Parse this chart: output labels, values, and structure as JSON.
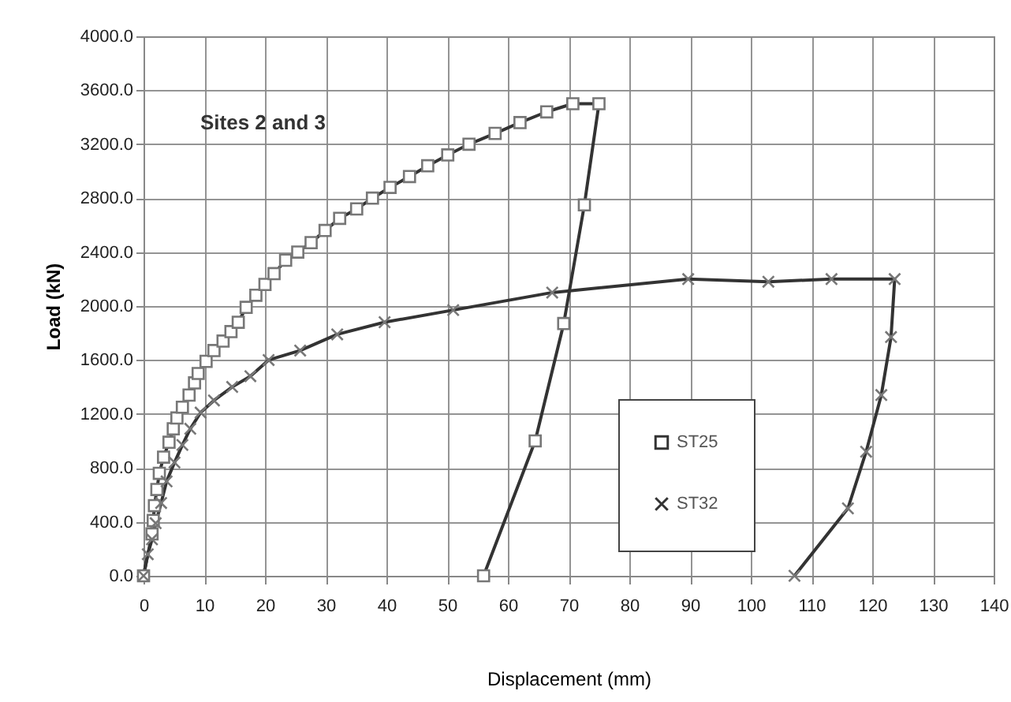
{
  "chart_data": {
    "type": "line",
    "xlabel": "Displacement (mm)",
    "ylabel": "Load (kN)",
    "annotations": [
      "Sites 2 and 3"
    ],
    "xlim": [
      0,
      140
    ],
    "xticks": [
      0,
      10,
      20,
      30,
      40,
      50,
      60,
      70,
      80,
      90,
      100,
      110,
      120,
      130,
      140
    ],
    "ylim": [
      0,
      4000
    ],
    "yticks": [
      {
        "value": 0,
        "label": "0.0"
      },
      {
        "value": 400,
        "label": "400.0"
      },
      {
        "value": 800,
        "label": "800.0"
      },
      {
        "value": 1200,
        "label": "1200.0"
      },
      {
        "value": 1600,
        "label": "1600.0"
      },
      {
        "value": 2000,
        "label": "2000.0"
      },
      {
        "value": 2400,
        "label": "2400.0"
      },
      {
        "value": 2800,
        "label": "2800.0"
      },
      {
        "value": 3200,
        "label": "3200.0"
      },
      {
        "value": 3600,
        "label": "3600.0"
      },
      {
        "value": 4000,
        "label": "4000.0"
      }
    ],
    "grid": true,
    "legend": "bottom right",
    "line_style": "solid",
    "series": [
      {
        "name": "ST25",
        "color": "#333333",
        "marker": "square",
        "x": [
          0,
          1.4,
          1.6,
          1.8,
          2.2,
          2.6,
          3.3,
          4.2,
          4.9,
          5.5,
          6.4,
          7.5,
          8.4,
          9.0,
          10.3,
          11.6,
          13.1,
          14.4,
          15.6,
          16.9,
          18.5,
          20.0,
          21.5,
          23.4,
          25.4,
          27.6,
          29.9,
          32.3,
          35.1,
          37.7,
          40.6,
          43.8,
          46.8,
          50.1,
          53.6,
          57.9,
          62.0,
          66.4,
          70.7,
          75.0,
          72.6,
          69.2,
          64.5,
          56.0
        ],
        "values": [
          0,
          310,
          410,
          520,
          640,
          760,
          880,
          990,
          1090,
          1170,
          1250,
          1340,
          1430,
          1500,
          1590,
          1670,
          1740,
          1810,
          1880,
          1990,
          2080,
          2160,
          2240,
          2340,
          2400,
          2470,
          2560,
          2650,
          2720,
          2800,
          2880,
          2960,
          3040,
          3120,
          3200,
          3280,
          3360,
          3440,
          3500,
          3500,
          2750,
          1870,
          1000,
          0
        ]
      },
      {
        "name": "ST32",
        "color": "#333333",
        "marker": "cross",
        "x": [
          0,
          0.7,
          1.4,
          2.0,
          2.9,
          3.8,
          5.1,
          6.4,
          7.7,
          9.4,
          11.6,
          14.6,
          17.6,
          20.6,
          25.8,
          31.9,
          39.7,
          51.0,
          67.3,
          89.7,
          102.9,
          113.3,
          123.7,
          123.1,
          121.5,
          119.0,
          116.0,
          107.2
        ],
        "values": [
          0,
          160,
          270,
          390,
          540,
          700,
          840,
          970,
          1090,
          1210,
          1300,
          1400,
          1480,
          1600,
          1670,
          1790,
          1880,
          1970,
          2100,
          2200,
          2180,
          2200,
          2200,
          1770,
          1340,
          920,
          500,
          0
        ]
      }
    ]
  }
}
